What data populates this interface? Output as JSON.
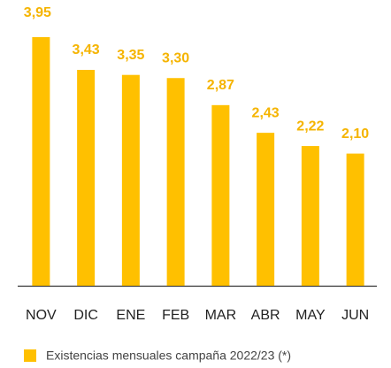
{
  "chart_data": {
    "type": "bar",
    "categories": [
      "NOV",
      "DIC",
      "ENE",
      "FEB",
      "MAR",
      "ABR",
      "MAY",
      "JUN"
    ],
    "series": [
      {
        "name": "Existencias mensuales campaña 2022/23 (*)",
        "color": "#FFC000",
        "values": [
          3.95,
          3.43,
          3.35,
          3.3,
          2.87,
          2.43,
          2.22,
          2.1
        ],
        "value_labels": [
          "3,95",
          "3,43",
          "3,35",
          "3,30",
          "2,87",
          "2,43",
          "2,22",
          "2,10"
        ]
      }
    ],
    "legend": "bottom-left"
  }
}
